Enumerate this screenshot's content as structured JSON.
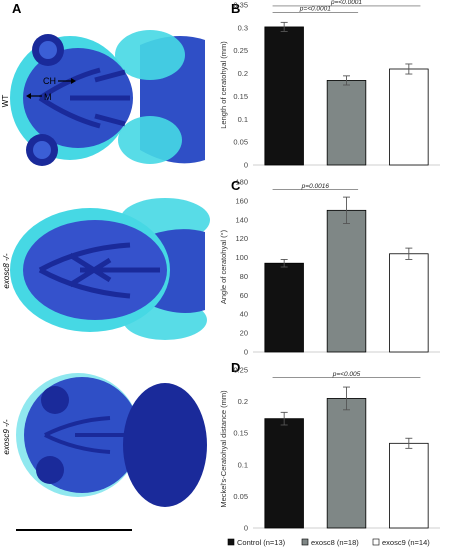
{
  "panels": {
    "A": "A",
    "B": "B",
    "C": "C",
    "D": "D"
  },
  "images": {
    "rows": [
      {
        "label": "WT",
        "style": "normal"
      },
      {
        "label": "exosc8 -/-",
        "style": "italic"
      },
      {
        "label": "exosc9 -/-",
        "style": "italic"
      }
    ],
    "annotations": {
      "ch": "CH",
      "m": "M"
    }
  },
  "colors": {
    "control": "#111111",
    "exosc8": "#7f8786",
    "exosc9": "#ffffff",
    "fish_body": "#2f4fc6",
    "fish_fin": "#46d8e4",
    "fish_dark": "#1a2a9a"
  },
  "legend": [
    {
      "label": "Control (n=13)",
      "color": "#111111"
    },
    {
      "label": "exosc8 (n=18)",
      "color": "#7f8786"
    },
    {
      "label": "exosc9 (n=14)",
      "color": "#ffffff"
    }
  ],
  "chart_data": [
    {
      "type": "bar",
      "panel": "B",
      "categories": [
        "Control",
        "exosc8",
        "exosc9"
      ],
      "values": [
        0.302,
        0.185,
        0.21
      ],
      "errors": [
        0.01,
        0.01,
        0.011
      ],
      "ylabel": "Length of ceratohyal (mm)",
      "ylim": [
        0,
        0.35
      ],
      "yticks": [
        "0",
        "0.05",
        "0.1",
        "0.15",
        "0.2",
        "0.25",
        "0.3",
        "0.35"
      ],
      "brackets": [
        {
          "from": 0,
          "to": 1,
          "label": "p=<0.0001",
          "level": 0.334
        },
        {
          "from": 0,
          "to": 2,
          "label": "p=<0.0001",
          "level": 0.348
        }
      ]
    },
    {
      "type": "bar",
      "panel": "C",
      "categories": [
        "Control",
        "exosc8",
        "exosc9"
      ],
      "values": [
        94,
        150,
        104
      ],
      "errors": [
        4,
        14,
        6
      ],
      "ylabel": "Angle of ceratohyal (°)",
      "ylim": [
        0,
        180
      ],
      "yticks": [
        "0",
        "20",
        "40",
        "60",
        "80",
        "100",
        "120",
        "140",
        "160",
        "180"
      ],
      "brackets": [
        {
          "from": 0,
          "to": 1,
          "label": "p=0.0016",
          "level": 172
        }
      ]
    },
    {
      "type": "bar",
      "panel": "D",
      "categories": [
        "Control",
        "exosc8",
        "exosc9"
      ],
      "values": [
        0.173,
        0.205,
        0.134
      ],
      "errors": [
        0.01,
        0.018,
        0.008
      ],
      "ylabel": "Meckel's-Ceratohyal distance (mm)",
      "ylim": [
        0,
        0.25
      ],
      "yticks": [
        "0",
        "0.05",
        "0.1",
        "0.15",
        "0.2",
        "0.25"
      ],
      "brackets": [
        {
          "from": 0,
          "to": 2,
          "label": "p=<0.005",
          "level": 0.238
        }
      ]
    }
  ]
}
